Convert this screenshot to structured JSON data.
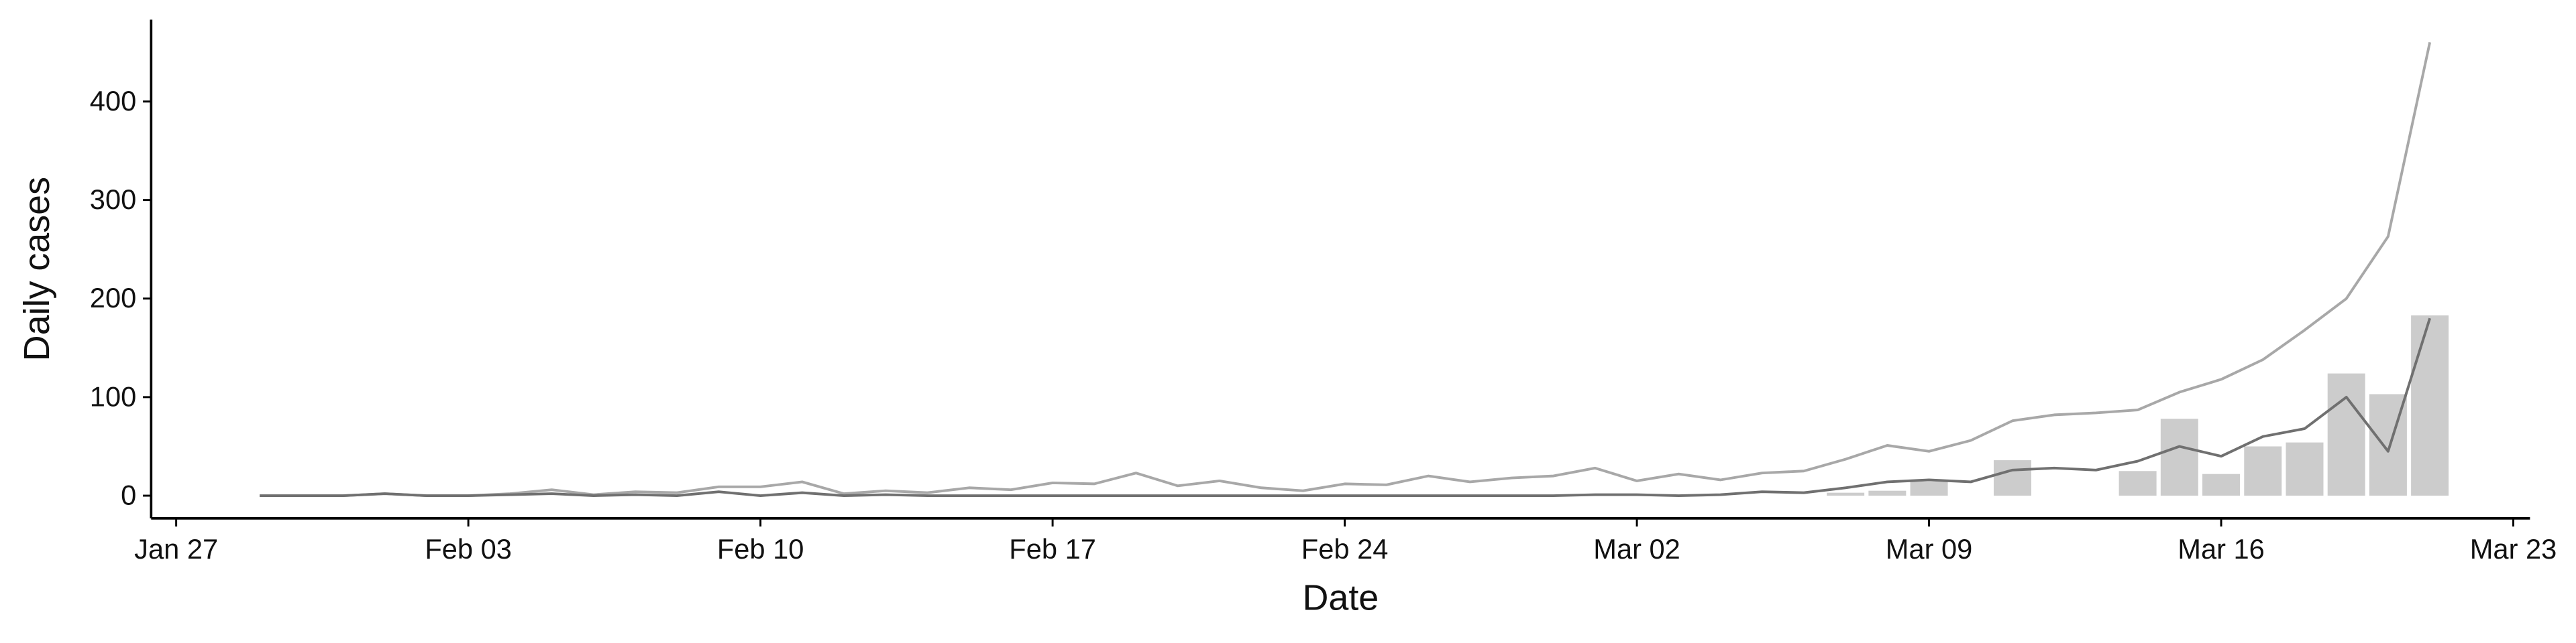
{
  "chart_data": {
    "type": "bar",
    "x_label": "Date",
    "y_label": "Daily cases",
    "xlim": [
      26.4,
      83.4
    ],
    "xticks": [
      {
        "value": 27,
        "label": "Jan 27"
      },
      {
        "value": 34,
        "label": "Feb 03"
      },
      {
        "value": 41,
        "label": "Feb 10"
      },
      {
        "value": 48,
        "label": "Feb 17"
      },
      {
        "value": 55,
        "label": "Feb 24"
      },
      {
        "value": 62,
        "label": "Mar 02"
      },
      {
        "value": 69,
        "label": "Mar 09"
      },
      {
        "value": 76,
        "label": "Mar 16"
      },
      {
        "value": 83,
        "label": "Mar 23"
      }
    ],
    "ylim": [
      -23,
      483
    ],
    "yticks": [
      0,
      100,
      200,
      300,
      400
    ],
    "grid": false,
    "series": [
      {
        "type": "bar",
        "color": "#cccccc",
        "x": [
          67,
          68,
          69,
          71,
          74,
          75,
          76,
          77,
          78,
          79,
          80,
          81
        ],
        "values": [
          3,
          5,
          14,
          36,
          25,
          78,
          22,
          50,
          54,
          124,
          103,
          183
        ]
      },
      {
        "type": "line",
        "color": "#a8a8a8",
        "x": [
          29,
          30,
          31,
          32,
          33,
          34,
          35,
          36,
          37,
          38,
          39,
          40,
          41,
          42,
          43,
          44,
          45,
          46,
          47,
          48,
          49,
          50,
          51,
          52,
          53,
          54,
          55,
          56,
          57,
          58,
          59,
          60,
          61,
          62,
          63,
          64,
          65,
          66,
          67,
          68,
          69,
          70,
          71,
          72,
          73,
          74,
          75,
          76,
          77,
          78,
          79,
          80,
          81
        ],
        "values": [
          0,
          0,
          0,
          2,
          0,
          0,
          2,
          6,
          1,
          4,
          3,
          9,
          9,
          14,
          2,
          5,
          3,
          8,
          6,
          13,
          12,
          23,
          10,
          15,
          8,
          5,
          12,
          11,
          20,
          14,
          18,
          20,
          28,
          15,
          22,
          16,
          23,
          25,
          37,
          51,
          45,
          56,
          76,
          82,
          84,
          87,
          105,
          118,
          138,
          168,
          200,
          263,
          460
        ]
      },
      {
        "type": "line",
        "color": "#707070",
        "x": [
          29,
          30,
          31,
          32,
          33,
          34,
          35,
          36,
          37,
          38,
          39,
          40,
          41,
          42,
          43,
          44,
          45,
          46,
          47,
          48,
          49,
          50,
          51,
          52,
          53,
          54,
          55,
          56,
          57,
          58,
          59,
          60,
          61,
          62,
          63,
          64,
          65,
          66,
          67,
          68,
          69,
          70,
          71,
          72,
          73,
          74,
          75,
          76,
          77,
          78,
          79,
          80,
          81
        ],
        "values": [
          0,
          0,
          0,
          2,
          0,
          0,
          1,
          2,
          0,
          1,
          0,
          4,
          0,
          3,
          0,
          1,
          0,
          0,
          0,
          0,
          0,
          0,
          0,
          0,
          0,
          0,
          0,
          0,
          0,
          0,
          0,
          0,
          1,
          1,
          0,
          1,
          4,
          3,
          8,
          14,
          16,
          14,
          26,
          28,
          26,
          35,
          50,
          40,
          60,
          68,
          100,
          45,
          180
        ]
      }
    ]
  }
}
